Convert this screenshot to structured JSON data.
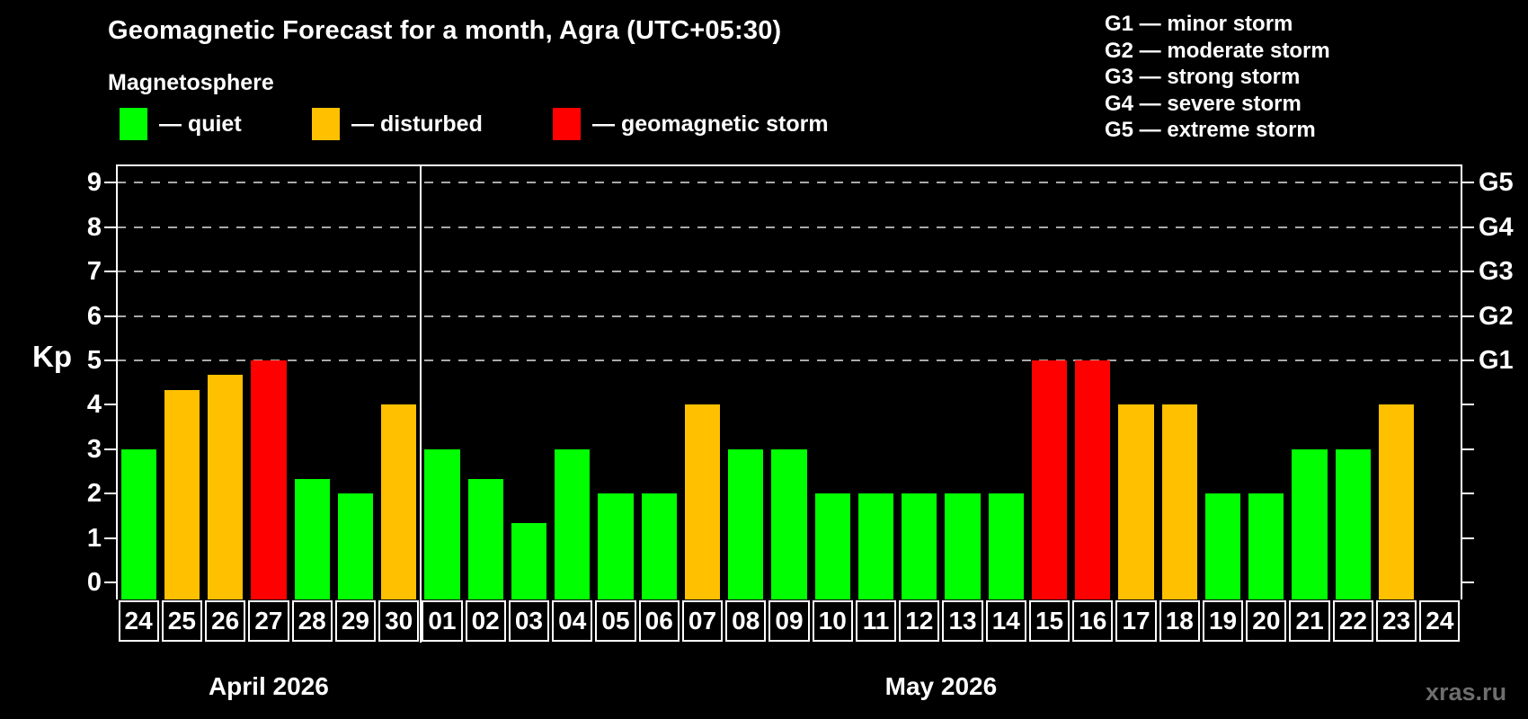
{
  "header": {
    "title": "Geomagnetic Forecast for a month, Agra (UTC+05:30)",
    "subtitle": "Magnetosphere"
  },
  "legend": {
    "items": [
      {
        "key": "quiet",
        "label": "— quiet",
        "color": "#00ff00"
      },
      {
        "key": "disturbed",
        "label": "— disturbed",
        "color": "#ffc000"
      },
      {
        "key": "storm",
        "label": "— geomagnetic storm",
        "color": "#ff0000"
      }
    ]
  },
  "g_scale_legend": [
    "G1 — minor storm",
    "G2 — moderate storm",
    "G3 — strong storm",
    "G4 — severe storm",
    "G5 — extreme storm"
  ],
  "watermark": "xras.ru",
  "chart_data": {
    "type": "bar",
    "title": "Geomagnetic Forecast for a month, Agra (UTC+05:30)",
    "ylabel": "Kp",
    "ylim": [
      0,
      9.7
    ],
    "grid": true,
    "grid_levels": [
      5,
      6,
      7,
      8,
      9
    ],
    "y_ticks": [
      "0",
      "1",
      "2",
      "3",
      "4",
      "5",
      "6",
      "7",
      "8",
      "9"
    ],
    "right_axis_labels": {
      "5": "G1",
      "6": "G2",
      "7": "G3",
      "8": "G4",
      "9": "G5"
    },
    "axis_color": "#ffffff",
    "grid_color": "#a9a9a9",
    "months": [
      {
        "label": "April 2026",
        "slots": 7
      },
      {
        "label": "May 2026",
        "slots": 24
      }
    ],
    "bars": [
      {
        "day": "24",
        "kp": 3,
        "status": "quiet"
      },
      {
        "day": "25",
        "kp": 4.33,
        "status": "disturbed"
      },
      {
        "day": "26",
        "kp": 4.67,
        "status": "disturbed"
      },
      {
        "day": "27",
        "kp": 5,
        "status": "storm"
      },
      {
        "day": "28",
        "kp": 2.33,
        "status": "quiet"
      },
      {
        "day": "29",
        "kp": 2,
        "status": "quiet"
      },
      {
        "day": "30",
        "kp": 4,
        "status": "disturbed"
      },
      {
        "day": "01",
        "kp": 3,
        "status": "quiet"
      },
      {
        "day": "02",
        "kp": 2.33,
        "status": "quiet"
      },
      {
        "day": "03",
        "kp": 1.33,
        "status": "quiet"
      },
      {
        "day": "04",
        "kp": 3,
        "status": "quiet"
      },
      {
        "day": "05",
        "kp": 2,
        "status": "quiet"
      },
      {
        "day": "06",
        "kp": 2,
        "status": "quiet"
      },
      {
        "day": "07",
        "kp": 4,
        "status": "disturbed"
      },
      {
        "day": "08",
        "kp": 3,
        "status": "quiet"
      },
      {
        "day": "09",
        "kp": 3,
        "status": "quiet"
      },
      {
        "day": "10",
        "kp": 2,
        "status": "quiet"
      },
      {
        "day": "11",
        "kp": 2,
        "status": "quiet"
      },
      {
        "day": "12",
        "kp": 2,
        "status": "quiet"
      },
      {
        "day": "13",
        "kp": 2,
        "status": "quiet"
      },
      {
        "day": "14",
        "kp": 2,
        "status": "quiet"
      },
      {
        "day": "15",
        "kp": 5,
        "status": "storm"
      },
      {
        "day": "16",
        "kp": 5,
        "status": "storm"
      },
      {
        "day": "17",
        "kp": 4,
        "status": "disturbed"
      },
      {
        "day": "18",
        "kp": 4,
        "status": "disturbed"
      },
      {
        "day": "19",
        "kp": 2,
        "status": "quiet"
      },
      {
        "day": "20",
        "kp": 2,
        "status": "quiet"
      },
      {
        "day": "21",
        "kp": 3,
        "status": "quiet"
      },
      {
        "day": "22",
        "kp": 3,
        "status": "quiet"
      },
      {
        "day": "23",
        "kp": 4,
        "status": "disturbed"
      },
      {
        "day": "24",
        "kp": null,
        "status": null
      }
    ]
  }
}
